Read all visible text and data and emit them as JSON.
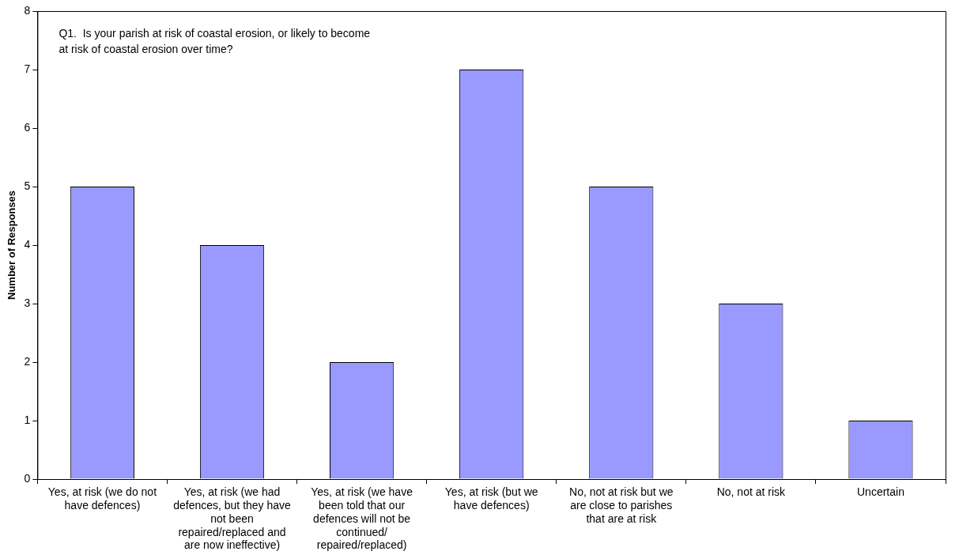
{
  "chart_data": {
    "type": "bar",
    "title": "Q1.  Is your parish at risk of coastal erosion, or likely to become at risk of coastal erosion over time?",
    "ylabel": "Number of Responses",
    "categories": [
      "Yes, at risk (we do not have defences)",
      "Yes, at risk (we had defences, but they have not been repaired/replaced and are now ineffective)",
      "Yes, at risk (we have been told that our defences will not be continued/ repaired/replaced)",
      "Yes, at risk (but we have defences)",
      "No, not at risk but we are close to parishes that are at risk",
      "No, not at risk",
      "Uncertain"
    ],
    "values": [
      5,
      4,
      2,
      7,
      5,
      3,
      1
    ],
    "color": "#9999ff",
    "ylim": [
      0,
      8
    ],
    "yticks": [
      0,
      1,
      2,
      3,
      4,
      5,
      6,
      7,
      8
    ],
    "grid": false,
    "legend": false
  }
}
